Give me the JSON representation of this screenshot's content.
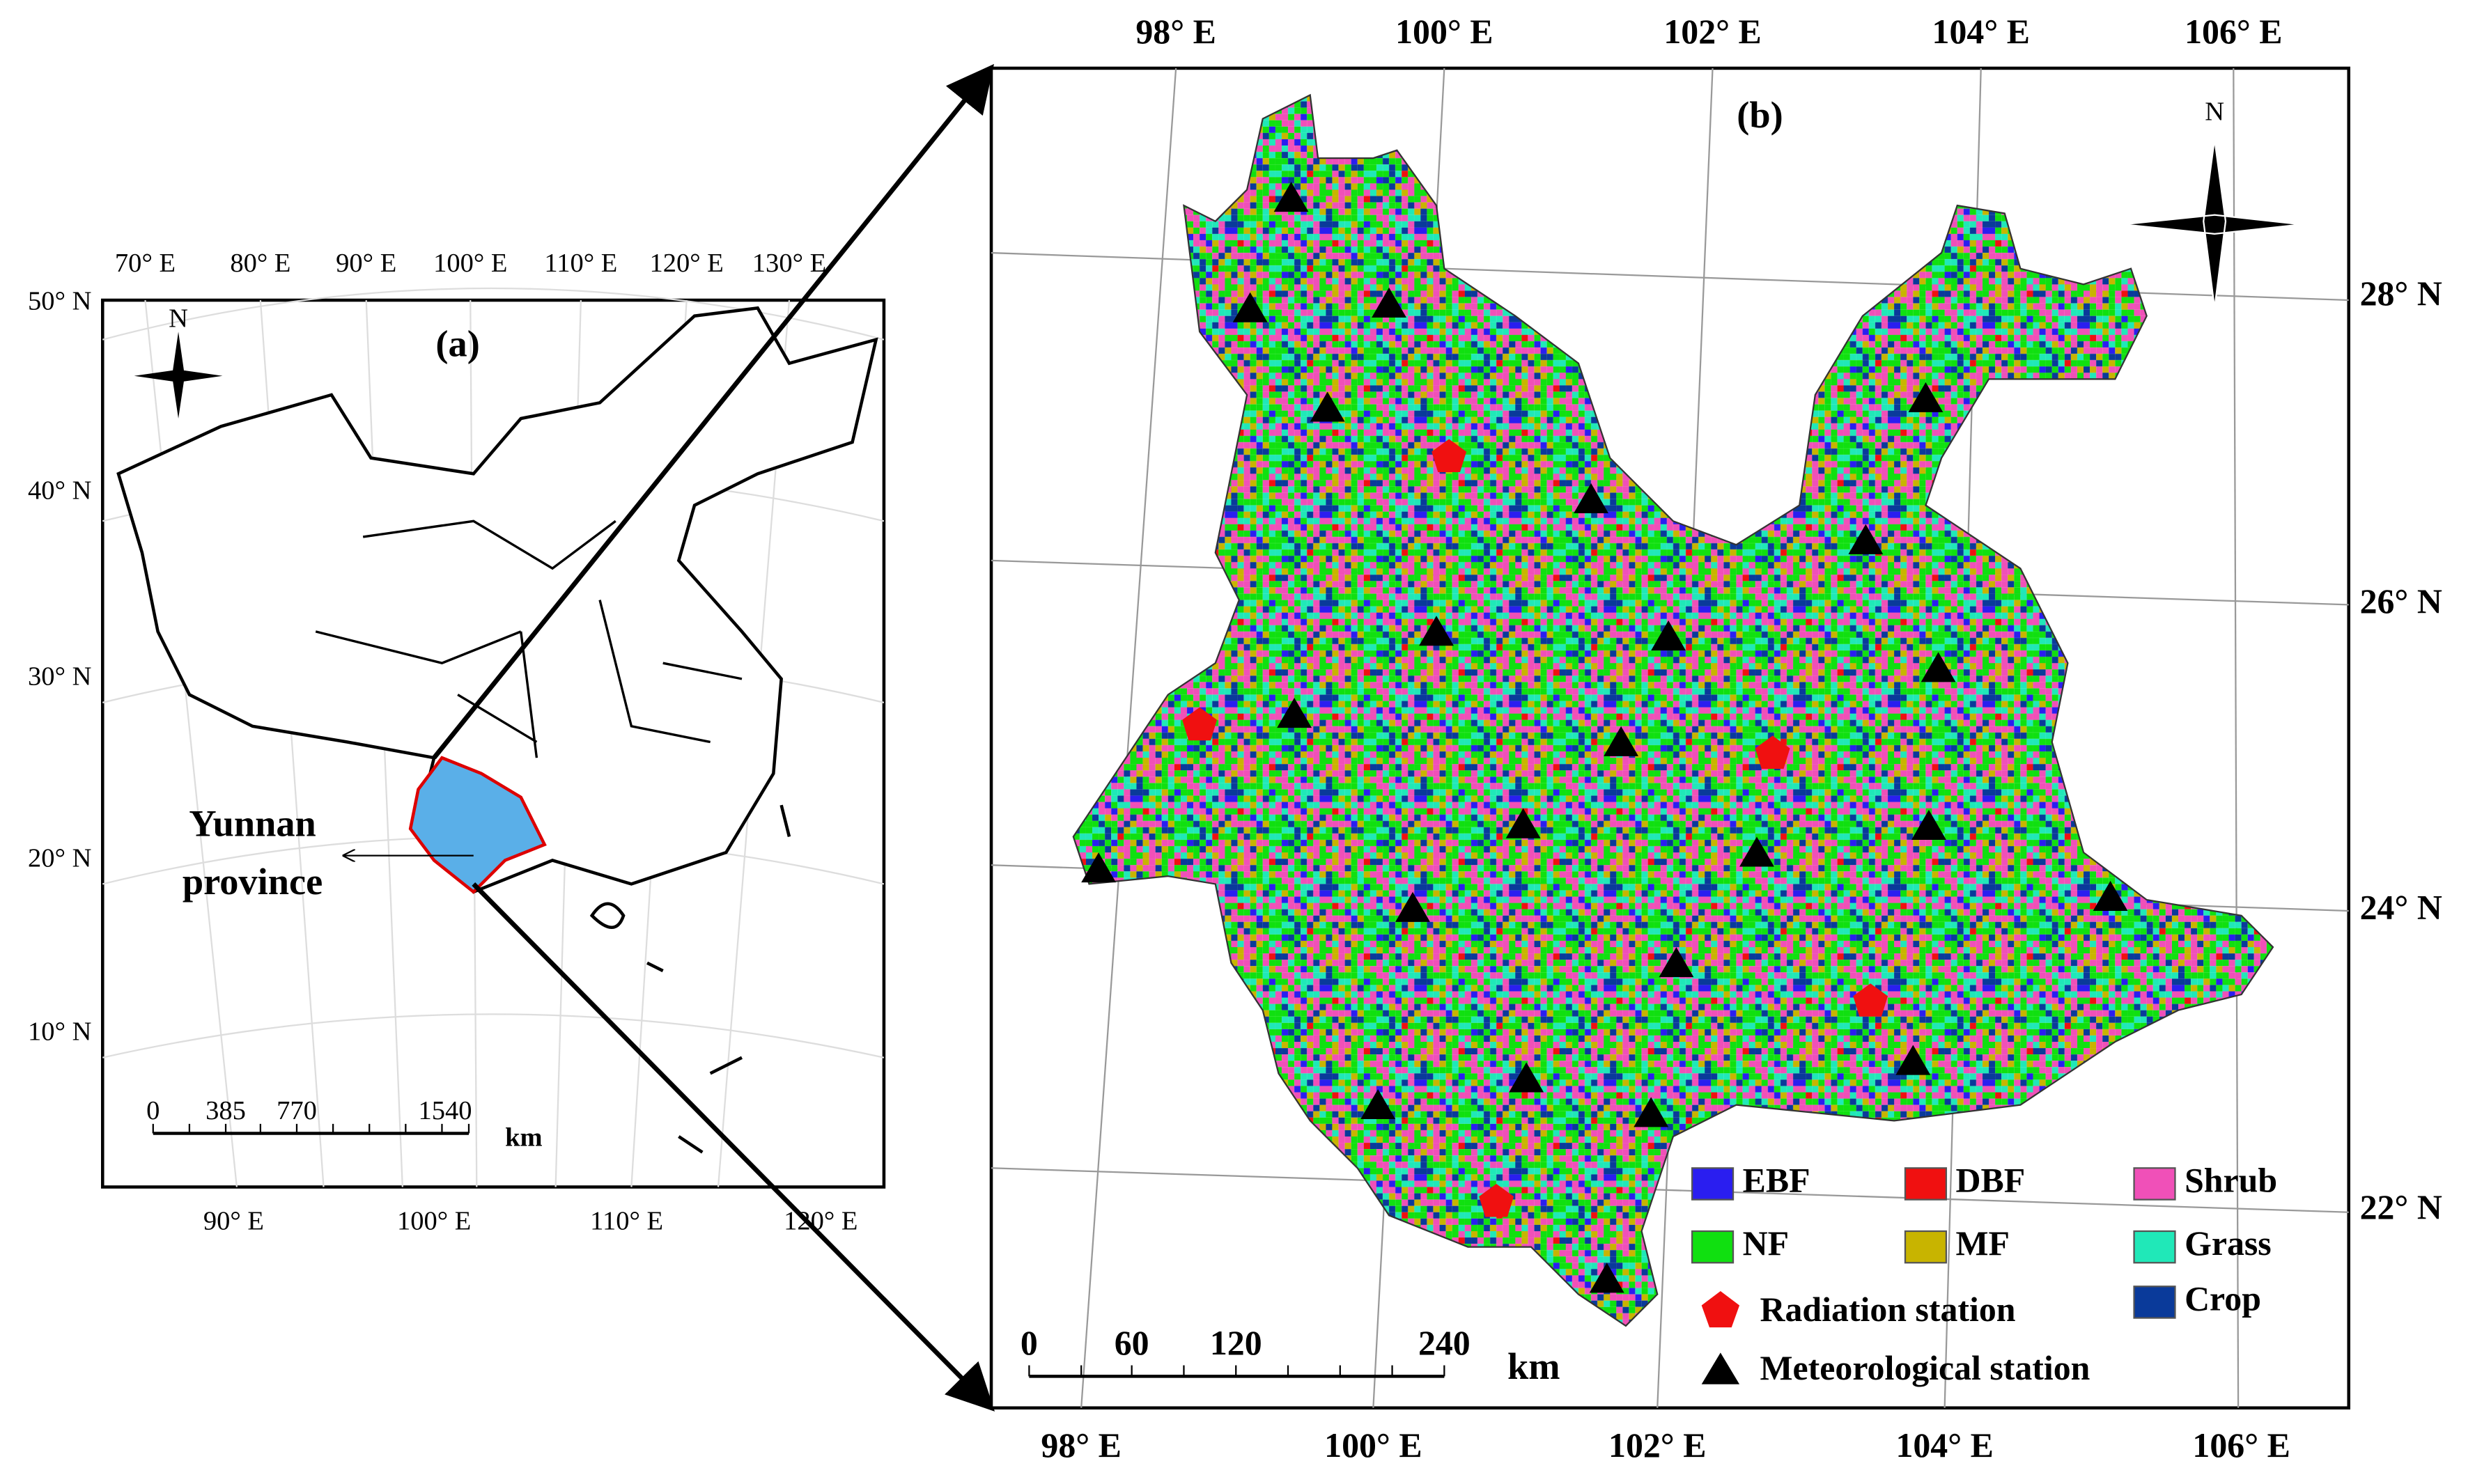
{
  "panel_a": {
    "label": "(a)",
    "north": "N",
    "top_lon_labels": [
      "70° E",
      "80° E",
      "90° E",
      "100° E",
      "110° E",
      "120° E",
      "130° E"
    ],
    "lat_labels": [
      "50° N",
      "40° N",
      "30° N",
      "20° N",
      "10° N"
    ],
    "bottom_lon_labels": [
      "90° E",
      "100° E",
      "110° E",
      "120° E"
    ],
    "scale_bar": {
      "ticks": [
        "0",
        "385",
        "770",
        "1540"
      ],
      "unit": "km"
    },
    "callout": [
      "Yunnan",
      "province"
    ]
  },
  "panel_b": {
    "label": "(b)",
    "north": "N",
    "top_lon_labels": [
      "98° E",
      "100° E",
      "102° E",
      "104° E",
      "106° E"
    ],
    "bottom_lon_labels": [
      "98° E",
      "100° E",
      "102° E",
      "104° E",
      "106° E"
    ],
    "lat_labels": [
      "28° N",
      "26° N",
      "24° N",
      "22° N"
    ],
    "scale_bar": {
      "ticks": [
        "0",
        "60",
        "120",
        "240"
      ],
      "unit": "km"
    },
    "legend": [
      {
        "label": "EBF",
        "color": "#2a1ef0"
      },
      {
        "label": "DBF",
        "color": "#f01010"
      },
      {
        "label": "Shrub",
        "color": "#f050b8"
      },
      {
        "label": "NF",
        "color": "#10e010"
      },
      {
        "label": "MF",
        "color": "#c8b400"
      },
      {
        "label": "Grass",
        "color": "#20e8b8"
      },
      {
        "label": "Crop",
        "color": "#0a3a9a"
      }
    ],
    "station_legend": [
      "Radiation station",
      "Meteorological station"
    ]
  }
}
